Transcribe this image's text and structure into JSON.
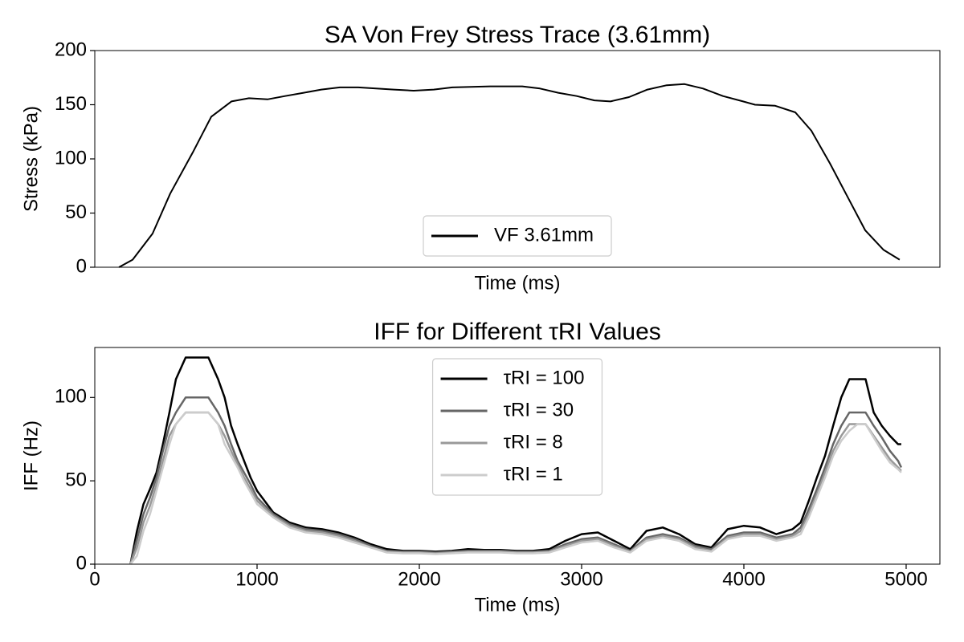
{
  "chart_data": [
    {
      "type": "line",
      "title": "SA Von Frey Stress Trace (3.61mm)",
      "xlabel": "Time (ms)",
      "ylabel": "Stress (kPa)",
      "x": [
        149,
        233,
        356,
        465,
        604,
        718,
        842,
        950,
        1064,
        1173,
        1287,
        1396,
        1510,
        1624,
        1733,
        1842,
        1965,
        2089,
        2203,
        2436,
        2535,
        2634,
        2743,
        2856,
        2970,
        3079,
        3178,
        3292,
        3406,
        3525,
        3634,
        3748,
        3871,
        3995,
        4069,
        4193,
        4317,
        4416,
        4530,
        4653,
        4748,
        4861,
        4960
      ],
      "series": [
        {
          "name": "VF 3.61mm",
          "color": "#000000",
          "values": [
            0,
            7,
            31,
            68,
            106,
            139,
            153,
            156,
            155,
            158,
            161,
            164,
            166,
            166,
            165,
            164,
            163,
            164,
            166,
            167,
            167,
            167,
            165,
            161,
            158,
            154,
            153,
            157,
            164,
            168,
            169,
            165,
            158,
            153,
            150,
            149,
            143,
            126,
            96,
            61,
            34,
            16,
            7
          ]
        }
      ],
      "xlim": [
        0,
        5208
      ],
      "ylim": [
        0,
        200
      ],
      "yticks": [
        0,
        50,
        100,
        150,
        200
      ],
      "legend": "lower center"
    },
    {
      "type": "line",
      "title": "IFF for Different τRI Values",
      "xlabel": "Time (ms)",
      "ylabel": "IFF (Hz)",
      "x": [
        220,
        260,
        300,
        340,
        380,
        420,
        460,
        500,
        560,
        620,
        700,
        760,
        800,
        840,
        880,
        920,
        960,
        1000,
        1100,
        1200,
        1300,
        1400,
        1500,
        1600,
        1700,
        1800,
        1900,
        2000,
        2100,
        2200,
        2300,
        2400,
        2500,
        2600,
        2700,
        2800,
        2900,
        3000,
        3100,
        3200,
        3300,
        3400,
        3500,
        3600,
        3700,
        3800,
        3900,
        4000,
        4100,
        4200,
        4300,
        4350,
        4400,
        4450,
        4500,
        4550,
        4600,
        4650,
        4700,
        4750,
        4800,
        4850,
        4900,
        4950,
        4970
      ],
      "series": [
        {
          "name": "τRI = 100",
          "color": "#000000",
          "values": [
            0,
            20,
            36,
            45,
            55,
            72,
            91,
            111,
            124,
            124,
            124,
            111,
            100,
            83,
            72,
            62,
            52,
            44,
            31,
            25,
            22,
            21,
            19,
            16,
            12,
            9,
            8,
            8,
            7.5,
            8,
            9,
            8.5,
            8.5,
            8,
            8,
            9,
            14,
            18,
            19,
            14,
            9,
            20,
            22,
            18,
            12,
            10,
            21,
            23,
            22,
            18,
            21,
            25,
            38,
            52,
            65,
            83,
            100,
            111,
            111,
            111,
            91,
            83,
            77,
            72,
            72
          ]
        },
        {
          "name": "τRI = 30",
          "color": "#666666",
          "values": [
            0,
            15,
            30,
            40,
            52,
            68,
            83,
            91,
            100,
            100,
            100,
            91,
            83,
            72,
            62,
            55,
            48,
            40,
            30,
            24,
            21,
            20,
            18,
            15,
            11,
            8,
            7.5,
            7.5,
            7,
            7.5,
            8,
            8,
            8,
            7.5,
            7.5,
            8,
            12,
            15,
            16,
            12,
            8,
            16,
            18,
            16,
            11,
            9,
            17,
            19,
            19,
            16,
            18,
            22,
            33,
            45,
            58,
            72,
            83,
            91,
            91,
            91,
            83,
            76,
            68,
            62,
            58
          ]
        },
        {
          "name": "τRI = 8",
          "color": "#999999",
          "values": [
            0,
            10,
            25,
            35,
            48,
            62,
            77,
            84,
            91,
            91,
            91,
            84,
            77,
            68,
            60,
            52,
            45,
            38,
            29,
            23,
            20,
            19,
            17,
            14,
            10,
            7.5,
            7,
            7,
            6.5,
            7,
            7.5,
            7.5,
            7.5,
            7,
            7,
            7.5,
            11,
            14,
            15,
            11,
            7.5,
            15,
            17,
            15,
            10,
            8,
            16,
            18,
            18,
            15,
            17,
            20,
            30,
            42,
            55,
            68,
            77,
            84,
            84,
            84,
            77,
            70,
            63,
            58,
            56
          ]
        },
        {
          "name": "τRI = 1",
          "color": "#cccccc",
          "values": [
            0,
            5,
            20,
            30,
            44,
            58,
            72,
            84,
            91,
            91,
            91,
            84,
            72,
            65,
            58,
            50,
            43,
            36,
            28,
            22,
            19,
            18,
            16,
            13,
            10,
            7,
            6.5,
            6.5,
            6,
            6.5,
            7,
            7,
            7,
            6.5,
            6.5,
            7,
            10,
            13,
            14,
            10,
            7,
            14,
            16,
            14,
            9,
            7.5,
            15,
            17,
            17,
            14,
            16,
            18,
            28,
            40,
            52,
            65,
            74,
            80,
            84,
            84,
            76,
            68,
            61,
            57,
            55
          ]
        }
      ],
      "xlim": [
        0,
        5208
      ],
      "ylim": [
        0,
        130
      ],
      "xticks": [
        0,
        1000,
        2000,
        3000,
        4000,
        5000
      ],
      "yticks": [
        0,
        50,
        100
      ],
      "legend": "upper center"
    }
  ]
}
